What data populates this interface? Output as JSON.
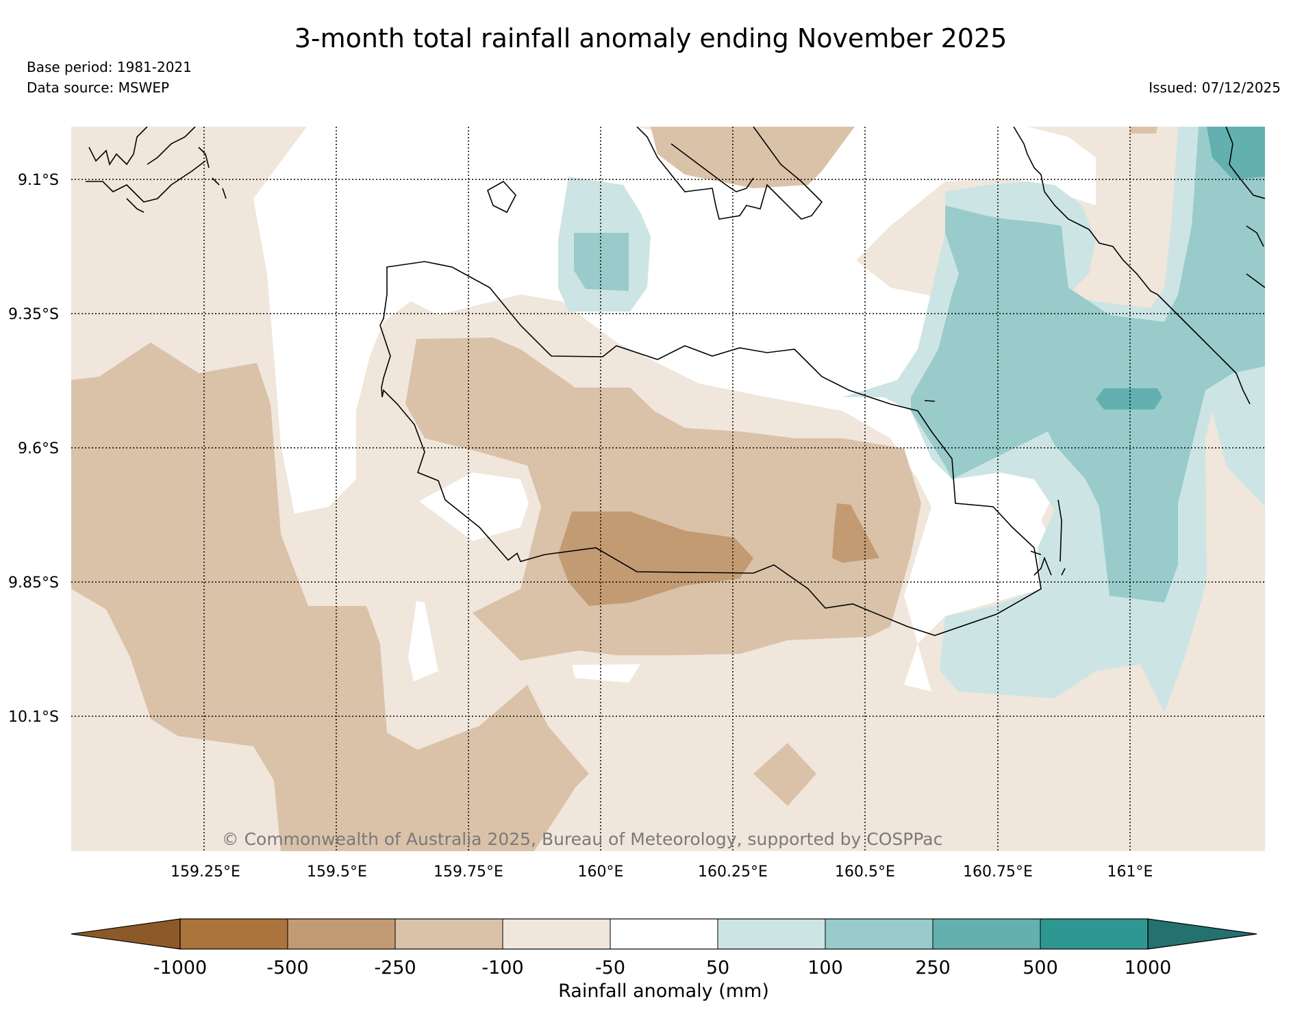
{
  "title": "3-month total rainfall anomaly ending November 2025",
  "meta": {
    "base_period": "Base period: 1981-2021",
    "data_source": "Data source: MSWEP",
    "issued": "Issued: 07/12/2025"
  },
  "copyright": "© Commonwealth of Australia 2025, Bureau of Meteorology, supported by COSPPac",
  "axes": {
    "latitudes": [
      "9.1°S",
      "9.35°S",
      "9.6°S",
      "9.85°S",
      "10.1°S"
    ],
    "longitudes": [
      "159.25°E",
      "159.5°E",
      "159.75°E",
      "160°E",
      "160.25°E",
      "160.5°E",
      "160.75°E",
      "161°E"
    ]
  },
  "colorbar": {
    "title": "Rainfall anomaly (mm)",
    "ticks": [
      "-1000",
      "-500",
      "-250",
      "-100",
      "-50",
      "50",
      "100",
      "250",
      "500",
      "1000"
    ],
    "colors": [
      "#8c5a28",
      "#ab743c",
      "#c39b73",
      "#dac2a9",
      "#f0e6dc",
      "#ffffff",
      "#cce5e4",
      "#99cbcb",
      "#62b0b0",
      "#2f9791",
      "#247170"
    ]
  },
  "legend_colors": {
    "land_outline": "#000000",
    "grid": "#000000"
  }
}
